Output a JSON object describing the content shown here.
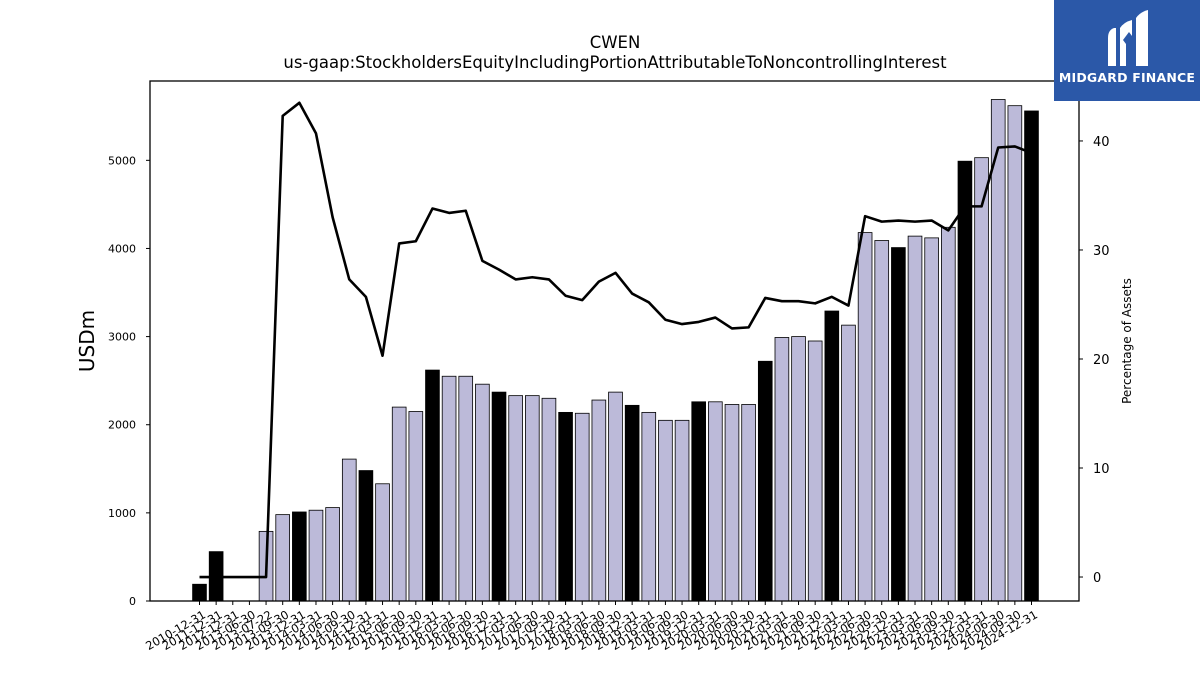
{
  "chart_data": {
    "type": "bar",
    "title": "CWEN",
    "subtitle": "us-gaap:StockholdersEquityIncludingPortionAttributableToNoncontrollingInterest",
    "ylabel": "USDm",
    "y2label": "Percentage of Assets",
    "ylim": [
      0,
      5900
    ],
    "y2lim": [
      -2.2,
      45.5
    ],
    "yticks": [
      0,
      1000,
      2000,
      3000,
      4000,
      5000
    ],
    "y2ticks": [
      0,
      10,
      20,
      30,
      40
    ],
    "grid": false,
    "categories": [
      "2010-12-31",
      "2011-12-31",
      "2012-12-31",
      "2013-06-30",
      "2013-07-22",
      "2013-09-30",
      "2013-12-31",
      "2014-03-31",
      "2014-06-30",
      "2014-09-30",
      "2014-12-31",
      "2015-03-31",
      "2015-06-30",
      "2015-09-30",
      "2015-12-31",
      "2016-03-31",
      "2016-06-30",
      "2016-09-30",
      "2016-12-31",
      "2017-03-31",
      "2017-06-30",
      "2017-09-30",
      "2017-12-31",
      "2018-03-31",
      "2018-06-30",
      "2018-09-30",
      "2018-12-31",
      "2019-03-31",
      "2019-06-30",
      "2019-09-30",
      "2019-12-31",
      "2020-03-31",
      "2020-06-30",
      "2020-09-30",
      "2020-12-31",
      "2021-03-31",
      "2021-06-30",
      "2021-09-30",
      "2021-12-31",
      "2022-03-31",
      "2022-06-30",
      "2022-09-30",
      "2022-12-31",
      "2023-03-31",
      "2023-06-30",
      "2023-09-30",
      "2023-12-31",
      "2024-03-31",
      "2024-06-30",
      "2024-09-30",
      "2024-12-31"
    ],
    "series": [
      {
        "values": [
          190,
          560,
          null,
          null,
          790,
          980,
          1010,
          1030,
          1060,
          1610,
          1480,
          1330,
          2200,
          2150,
          2620,
          2550,
          2550,
          2460,
          2370,
          2330,
          2330,
          2300,
          2140,
          2130,
          2280,
          2370,
          2220,
          2140,
          2050,
          2050,
          2260,
          2260,
          2230,
          2230,
          2720,
          2990,
          3000,
          2950,
          3290,
          3130,
          4180,
          4090,
          4010,
          4140,
          4120,
          4240,
          4990,
          5030,
          5690,
          5620,
          5560
        ],
        "highlight": [
          true,
          true,
          false,
          false,
          false,
          false,
          true,
          false,
          false,
          false,
          true,
          false,
          false,
          false,
          true,
          false,
          false,
          false,
          true,
          false,
          false,
          false,
          true,
          false,
          false,
          false,
          true,
          false,
          false,
          false,
          true,
          false,
          false,
          false,
          true,
          false,
          false,
          false,
          true,
          false,
          false,
          false,
          true,
          false,
          false,
          false,
          true,
          false,
          false,
          false,
          true
        ]
      },
      {
        "values": [
          0,
          0,
          0,
          0,
          0,
          42.3,
          43.5,
          40.7,
          33.0,
          27.3,
          25.7,
          20.3,
          30.6,
          30.8,
          33.8,
          33.4,
          33.6,
          29.0,
          28.2,
          27.3,
          27.5,
          27.3,
          25.8,
          25.4,
          27.1,
          27.9,
          26.0,
          25.2,
          23.6,
          23.2,
          23.4,
          23.8,
          22.8,
          22.9,
          25.6,
          25.3,
          25.3,
          25.1,
          25.7,
          24.9,
          33.1,
          32.6,
          32.7,
          32.6,
          32.7,
          31.8,
          34.0,
          34.0,
          39.4,
          39.5,
          38.9
        ]
      }
    ],
    "colors": {
      "bar_default": "#bcbad9",
      "bar_highlight": "#000000",
      "line": "#000000"
    }
  },
  "logo": {
    "text": "MIDGARD FINANCE",
    "background": "#2b58a8"
  }
}
